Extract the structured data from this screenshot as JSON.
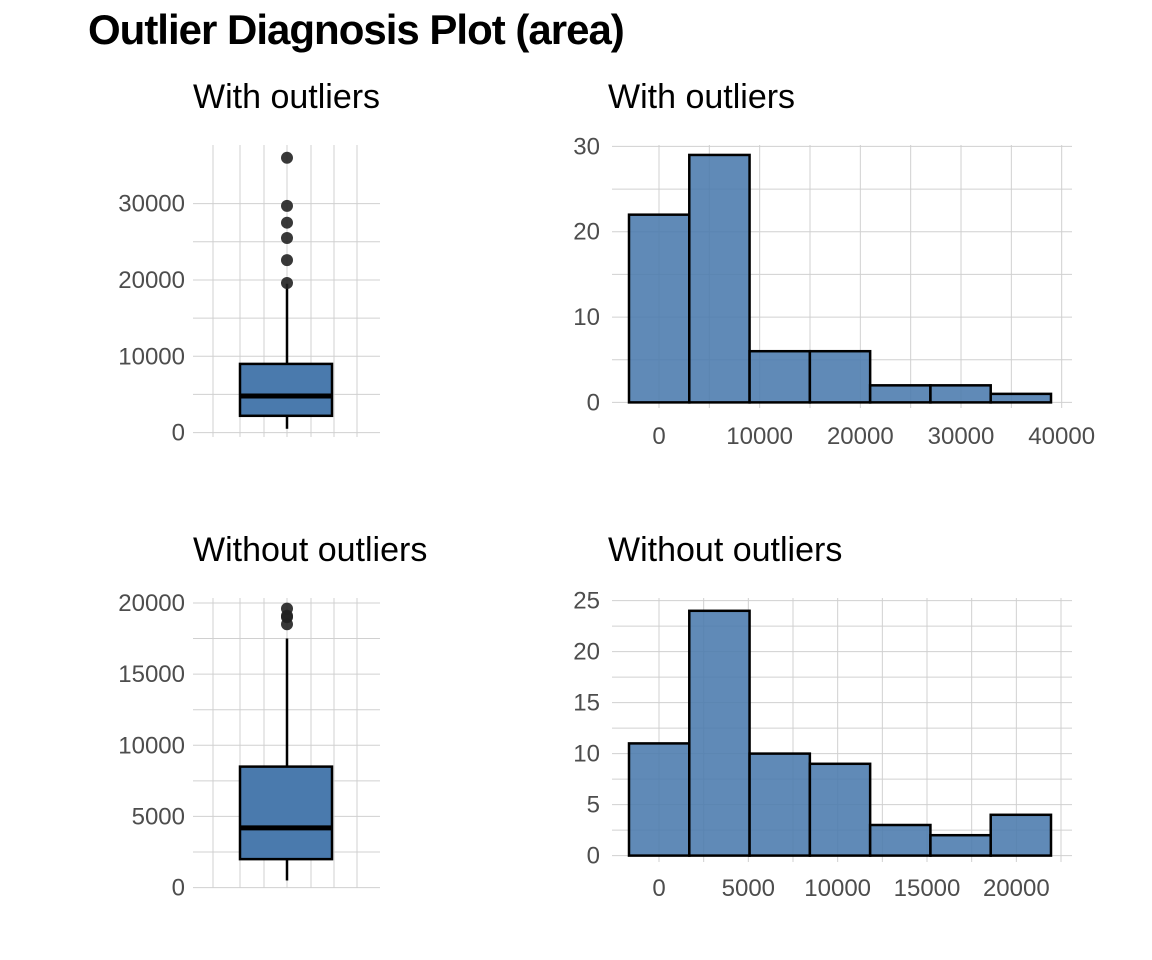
{
  "title": "Outlier Diagnosis Plot (area)",
  "colors": {
    "fill": "#4a7aad",
    "outline": "#000000",
    "grid": "#d0d0d0",
    "outlier": "#222222"
  },
  "chart_data": [
    {
      "type": "box",
      "title": "With outliers",
      "ylim": [
        0,
        36000
      ],
      "yticks": [
        0,
        10000,
        20000,
        30000
      ],
      "stats": {
        "min": 500,
        "q1": 2200,
        "median": 4800,
        "q3": 9000,
        "max": 19500
      },
      "outliers": [
        19600,
        22600,
        25500,
        27500,
        29700,
        36000
      ]
    },
    {
      "type": "bar",
      "title": "With outliers",
      "xlim": [
        -4000,
        40000
      ],
      "ylim": [
        0,
        29
      ],
      "xticks": [
        0,
        10000,
        20000,
        30000,
        40000
      ],
      "yticks": [
        0,
        10,
        20,
        30
      ],
      "bin_edges": [
        -3000,
        3000,
        9000,
        15000,
        21000,
        27000,
        33000,
        39000
      ],
      "values": [
        22,
        29,
        6,
        6,
        2,
        2,
        1
      ]
    },
    {
      "type": "box",
      "title": "Without outliers",
      "ylim": [
        0,
        19600
      ],
      "yticks": [
        0,
        5000,
        10000,
        15000,
        20000
      ],
      "stats": {
        "min": 500,
        "q1": 2000,
        "median": 4200,
        "q3": 8500,
        "max": 17500
      },
      "outliers": [
        18500,
        19000,
        19100,
        19600
      ]
    },
    {
      "type": "bar",
      "title": "Without outliers",
      "xlim": [
        -2000,
        21000
      ],
      "ylim": [
        0,
        24
      ],
      "xticks": [
        0,
        5000,
        10000,
        15000,
        20000
      ],
      "yticks": [
        0,
        5,
        10,
        15,
        20,
        25
      ],
      "bin_edges": [
        -1700,
        1700,
        5100,
        8500,
        11900,
        15300,
        18700,
        22100
      ],
      "values": [
        11,
        24,
        10,
        9,
        3,
        2,
        4
      ]
    }
  ]
}
